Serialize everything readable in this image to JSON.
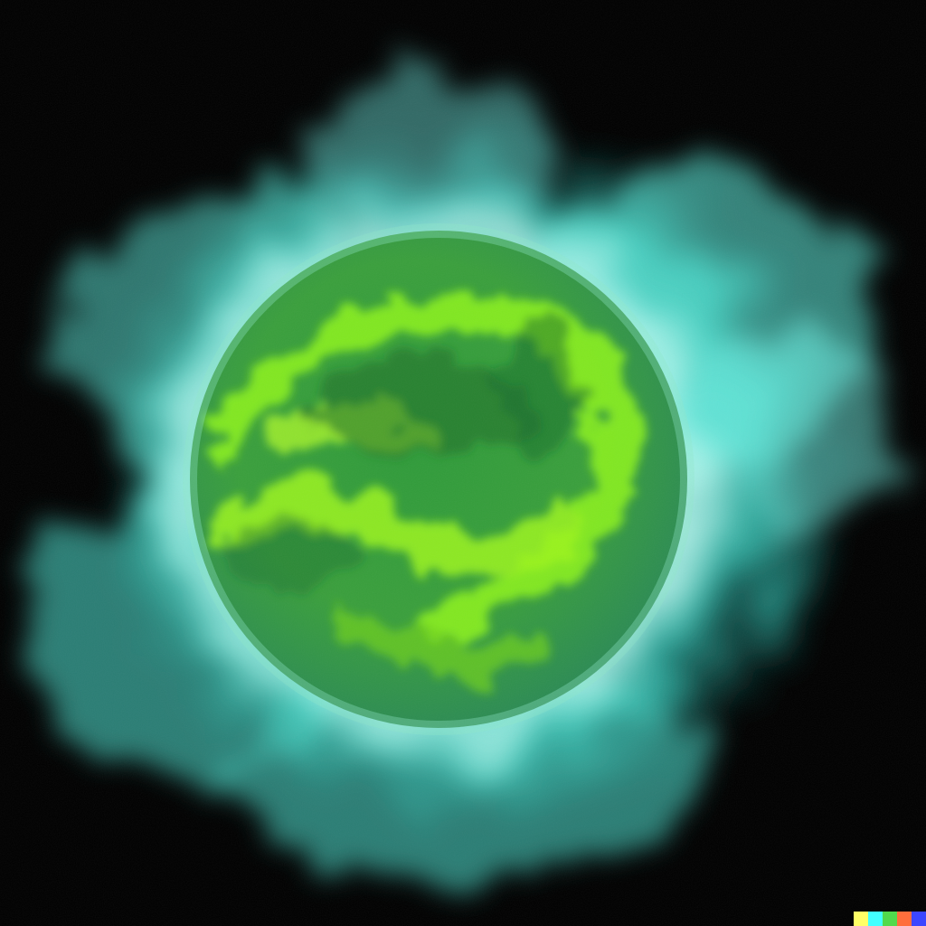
{
  "image": {
    "subject": "glowing-green-planet-with-cyan-aura",
    "background_color": "#000000",
    "colors": {
      "aura_outer": "#2fd4c6",
      "aura_mid": "#5eeede",
      "aura_light": "#c8fff6",
      "planet_base": "#2f9b3a",
      "planet_dark": "#1c6b2c",
      "planet_bright": "#8af01c",
      "planet_highlight": "#b6ff2a"
    }
  },
  "watermark": {
    "name": "color-bar-watermark",
    "colors": [
      "#ffff66",
      "#42ffff",
      "#51da4c",
      "#ff6e3c",
      "#3c46ff"
    ]
  }
}
